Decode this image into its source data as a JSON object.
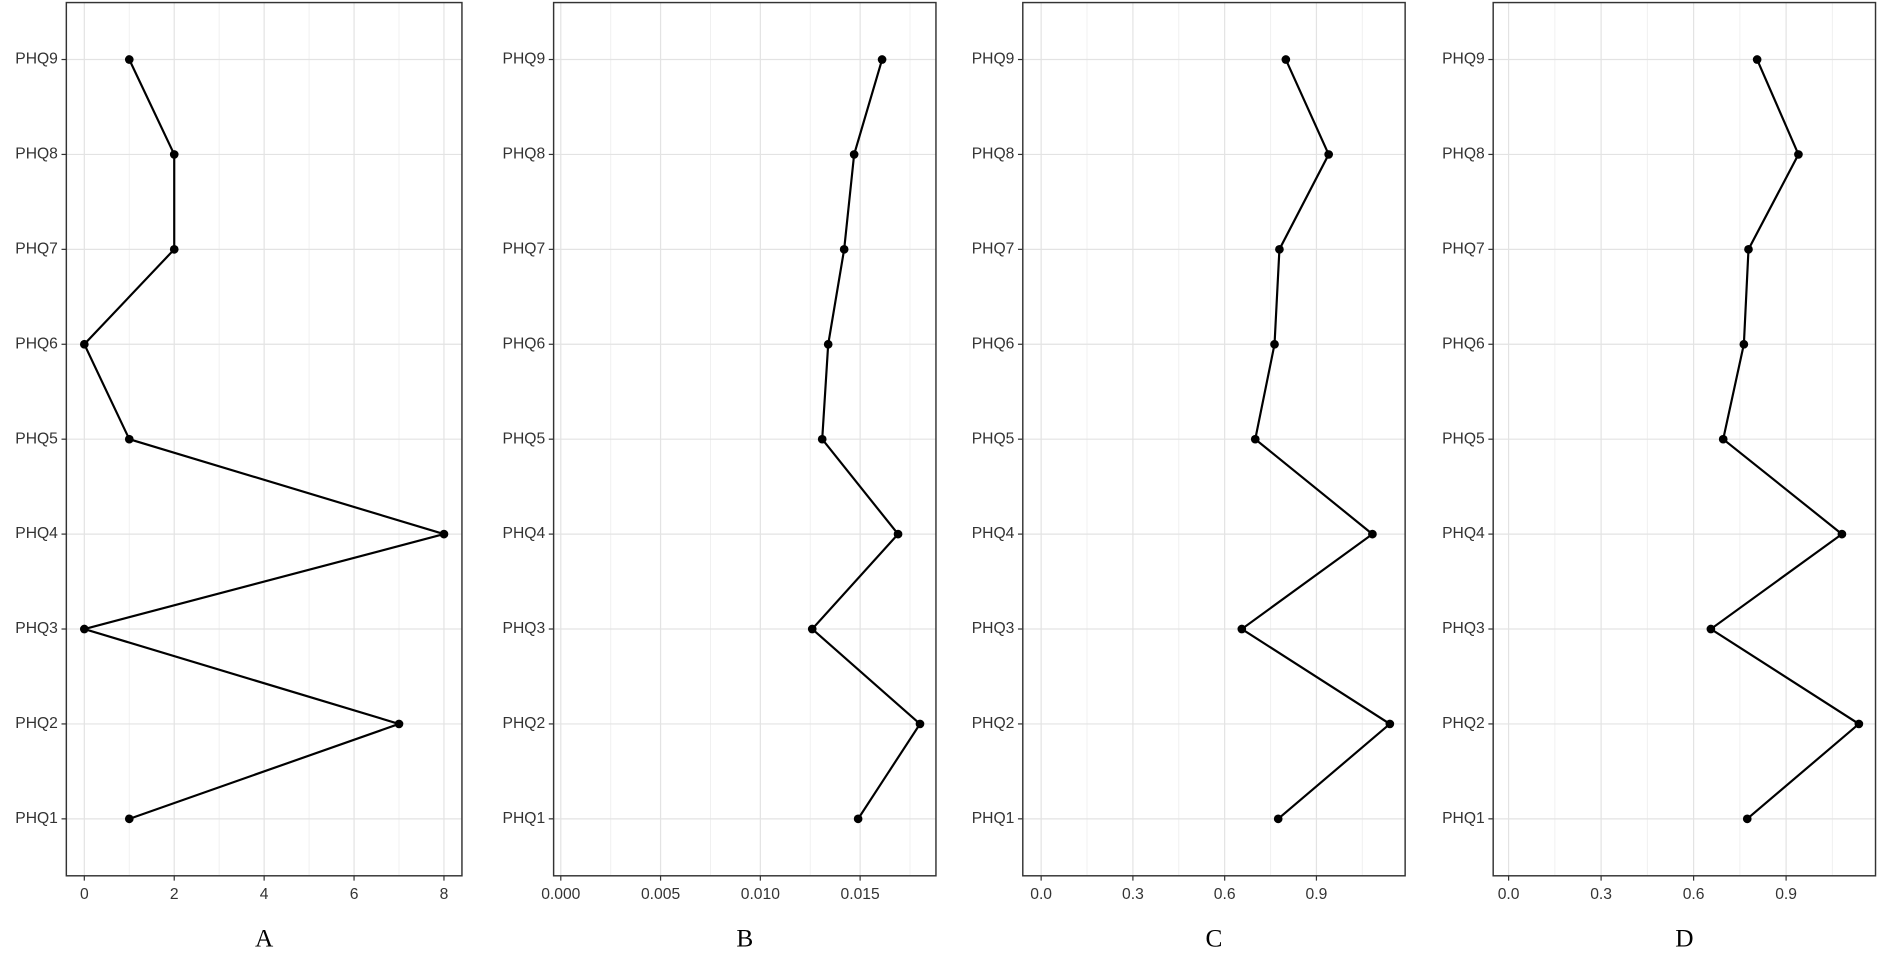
{
  "chart_data": [
    {
      "type": "line",
      "title": "A",
      "categories": [
        "PHQ1",
        "PHQ2",
        "PHQ3",
        "PHQ4",
        "PHQ5",
        "PHQ6",
        "PHQ7",
        "PHQ8",
        "PHQ9"
      ],
      "values": [
        1,
        7,
        0,
        8,
        1,
        0,
        2,
        2,
        1
      ],
      "xlim": [
        -0.4,
        8.4
      ],
      "xticks": [
        0,
        2,
        4,
        6,
        8
      ],
      "color": "#000000",
      "grid": true
    },
    {
      "type": "line",
      "title": "B",
      "categories": [
        "PHQ1",
        "PHQ2",
        "PHQ3",
        "PHQ4",
        "PHQ5",
        "PHQ6",
        "PHQ7",
        "PHQ8",
        "PHQ9"
      ],
      "values": [
        0.0149,
        0.018,
        0.0126,
        0.0169,
        0.0131,
        0.0134,
        0.0142,
        0.0147,
        0.0161
      ],
      "xlim": [
        -0.00036,
        0.0188
      ],
      "xticks": [
        {
          "value": 0,
          "label": "0.000"
        },
        0.005,
        {
          "value": 0.01,
          "label": "0.010"
        },
        0.015
      ],
      "color": "#000000",
      "grid": true
    },
    {
      "type": "line",
      "title": "C",
      "categories": [
        "PHQ1",
        "PHQ2",
        "PHQ3",
        "PHQ4",
        "PHQ5",
        "PHQ6",
        "PHQ7",
        "PHQ8",
        "PHQ9"
      ],
      "values": [
        0.775,
        1.14,
        0.656,
        1.083,
        0.7,
        0.763,
        0.779,
        0.94,
        0.8
      ],
      "xlim": [
        -0.06,
        1.19
      ],
      "xticks": [
        {
          "value": 0,
          "label": "0.0"
        },
        0.3,
        0.6,
        0.9
      ],
      "color": "#000000",
      "grid": true
    },
    {
      "type": "line",
      "title": "D",
      "categories": [
        "PHQ1",
        "PHQ2",
        "PHQ3",
        "PHQ4",
        "PHQ5",
        "PHQ6",
        "PHQ7",
        "PHQ8",
        "PHQ9"
      ],
      "values": [
        0.774,
        1.136,
        0.656,
        1.081,
        0.696,
        0.763,
        0.778,
        0.94,
        0.806
      ],
      "xlim": [
        -0.05,
        1.19
      ],
      "xticks": [
        {
          "value": 0,
          "label": "0.0"
        },
        0.3,
        0.6,
        0.9
      ],
      "color": "#000000",
      "grid": true
    }
  ]
}
